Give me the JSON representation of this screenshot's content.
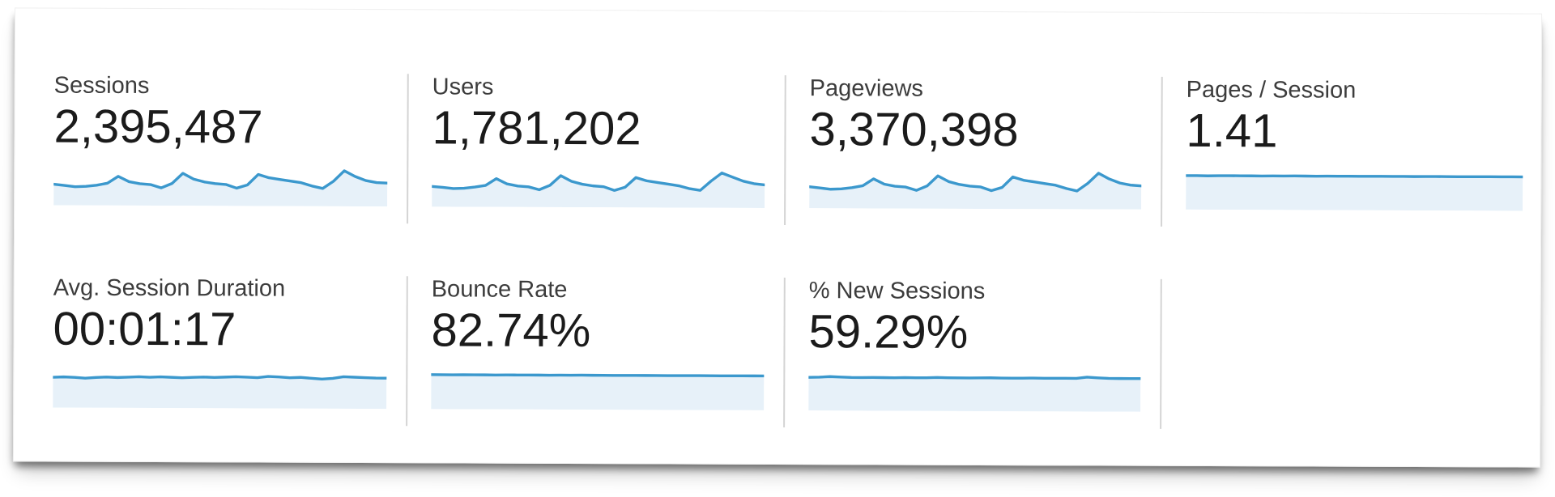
{
  "panel": {
    "background": "#ffffff",
    "divider_color": "#d4d4d4",
    "sparkline_line_color": "#3b98cd",
    "sparkline_fill_color": "#e7f1f9",
    "label_color": "#3c3c3c",
    "value_color": "#1b1b1b"
  },
  "metrics": [
    {
      "id": "sessions",
      "label": "Sessions",
      "value": "2,395,487",
      "sparkline": [
        52,
        49,
        46,
        47,
        50,
        55,
        72,
        59,
        54,
        52,
        44,
        55,
        80,
        66,
        59,
        55,
        53,
        44,
        52,
        78,
        70,
        66,
        62,
        58,
        50,
        44,
        62,
        88,
        74,
        64,
        59,
        58
      ]
    },
    {
      "id": "users",
      "label": "Users",
      "value": "1,781,202",
      "sparkline": [
        50,
        48,
        45,
        46,
        49,
        53,
        70,
        57,
        52,
        50,
        43,
        54,
        78,
        64,
        57,
        53,
        51,
        42,
        50,
        74,
        66,
        62,
        58,
        54,
        47,
        43,
        66,
        86,
        76,
        66,
        60,
        57
      ]
    },
    {
      "id": "pageviews",
      "label": "Pageviews",
      "value": "3,370,398",
      "sparkline": [
        53,
        50,
        47,
        48,
        51,
        56,
        73,
        60,
        55,
        53,
        45,
        56,
        81,
        67,
        60,
        56,
        54,
        45,
        53,
        79,
        71,
        67,
        63,
        59,
        51,
        45,
        64,
        89,
        75,
        65,
        60,
        58
      ]
    },
    {
      "id": "pages-per-session",
      "label": "Pages / Session",
      "value": "1.41",
      "sparkline": [
        84,
        84,
        83.6,
        84,
        84.2,
        84,
        84,
        83.7,
        84,
        84,
        84.2,
        84,
        83.8,
        84,
        84,
        84.1,
        83.8,
        84,
        84.2,
        84,
        84,
        83.8,
        84,
        84.1,
        84,
        83.8,
        84,
        84,
        84.1,
        84,
        84,
        84
      ]
    },
    {
      "id": "avg-session-duration",
      "label": "Avg. Session Duration",
      "value": "00:01:17",
      "sparkline": [
        75,
        76,
        75,
        73,
        75,
        76,
        75,
        76,
        77,
        76,
        77,
        76,
        75,
        76,
        77,
        76,
        77,
        78,
        77,
        76,
        79,
        78,
        76,
        77,
        75,
        73,
        75,
        79,
        78,
        77,
        76,
        76
      ]
    },
    {
      "id": "bounce-rate",
      "label": "Bounce Rate",
      "value": "82.74%",
      "sparkline": [
        85,
        85,
        84.7,
        85,
        85.1,
        85,
        84.8,
        85,
        85,
        85.1,
        85,
        84.8,
        85,
        85,
        85.2,
        85,
        85,
        84.8,
        85,
        85.1,
        85,
        85,
        84.8,
        85,
        85,
        85.1,
        85,
        84.9,
        85,
        85,
        85,
        85
      ]
    },
    {
      "id": "pct-new-sessions",
      "label": "% New Sessions",
      "value": "59.29%",
      "sparkline": [
        82,
        82.5,
        84,
        83,
        82,
        82,
        82.2,
        82,
        81.8,
        82.3,
        82,
        82,
        82.8,
        82.3,
        82,
        82,
        82.2,
        82.5,
        82,
        81.9,
        82,
        82.4,
        82,
        82,
        82.1,
        82,
        85,
        83.5,
        82.2,
        82,
        82,
        82
      ]
    }
  ]
}
